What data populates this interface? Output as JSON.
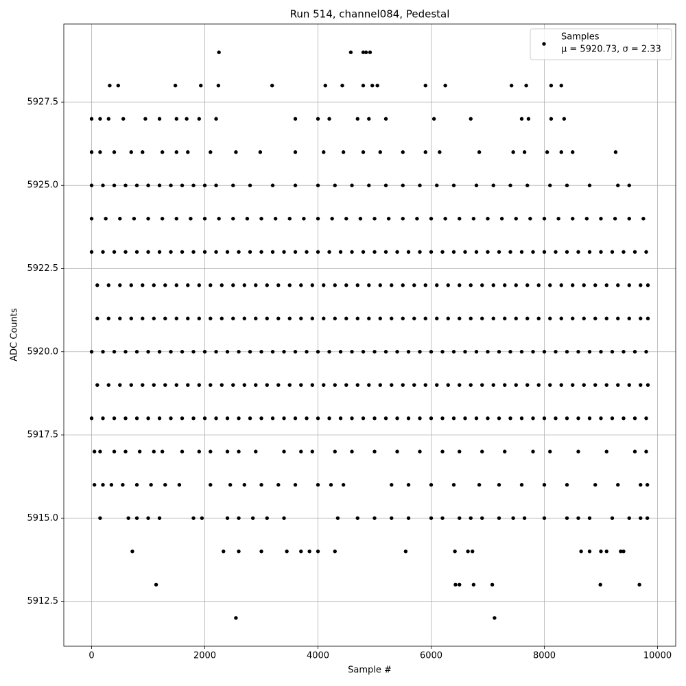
{
  "chart_data": {
    "type": "scatter",
    "title": "Run 514, channel084, Pedestal",
    "xlabel": "Sample #",
    "ylabel": "ADC Counts",
    "xlim": [
      -491.5,
      10321.5
    ],
    "ylim": [
      5911.15,
      5929.85
    ],
    "xticks": [
      0,
      2000,
      4000,
      6000,
      8000,
      10000
    ],
    "yticks": [
      {
        "value": 5912.5,
        "label": "5912.5"
      },
      {
        "value": 5915,
        "label": "5915.0"
      },
      {
        "value": 5917.5,
        "label": "5917.5"
      },
      {
        "value": 5920,
        "label": "5920.0"
      },
      {
        "value": 5922.5,
        "label": "5922.5"
      },
      {
        "value": 5925,
        "label": "5925.0"
      },
      {
        "value": 5927.5,
        "label": "5927.5"
      }
    ],
    "grid": true,
    "legend": "upper right",
    "legend_stats": "μ = 5920.73, σ = 2.33",
    "x": [
      2250,
      4580,
      4800,
      4850,
      4920,
      320,
      470,
      1480,
      1930,
      2240,
      3190,
      4130,
      4430,
      4800,
      4960,
      5050,
      5900,
      6250,
      7420,
      7680,
      8120,
      8300,
      0,
      150,
      300,
      560,
      950,
      1200,
      1500,
      1680,
      1900,
      2200,
      3600,
      4000,
      4200,
      4700,
      4900,
      5200,
      6050,
      6700,
      7600,
      7720,
      8120,
      8350,
      0,
      150,
      400,
      700,
      900,
      1250,
      1500,
      1700,
      2100,
      2550,
      2980,
      3600,
      4100,
      4450,
      4800,
      5100,
      5500,
      5900,
      6150,
      6850,
      7450,
      7650,
      8050,
      8300,
      8500,
      9260,
      0,
      200,
      400,
      600,
      800,
      1000,
      1200,
      1400,
      1600,
      1800,
      2000,
      2200,
      2500,
      2800,
      3200,
      3600,
      4000,
      4300,
      4600,
      4900,
      5200,
      5500,
      5800,
      6100,
      6400,
      6800,
      7100,
      7400,
      7700,
      8100,
      8400,
      8800,
      9300,
      9500,
      0,
      250,
      500,
      750,
      1000,
      1250,
      1500,
      1750,
      2000,
      2250,
      2500,
      2750,
      3000,
      3250,
      3500,
      3750,
      4000,
      4250,
      4500,
      4750,
      5000,
      5250,
      5500,
      5750,
      6000,
      6250,
      6500,
      6750,
      7000,
      7250,
      7500,
      7750,
      8000,
      8250,
      8500,
      8750,
      9000,
      9250,
      9500,
      9750,
      0,
      200,
      400,
      600,
      800,
      1000,
      1200,
      1400,
      1600,
      1800,
      2000,
      2200,
      2400,
      2600,
      2800,
      3000,
      3200,
      3400,
      3600,
      3800,
      4000,
      4200,
      4400,
      4600,
      4800,
      5000,
      5200,
      5400,
      5600,
      5800,
      6000,
      6200,
      6400,
      6600,
      6800,
      7000,
      7200,
      7400,
      7600,
      7800,
      8000,
      8200,
      8400,
      8600,
      8800,
      9000,
      9200,
      9400,
      9600,
      9800,
      100,
      300,
      500,
      700,
      900,
      1100,
      1300,
      1500,
      1700,
      1900,
      2100,
      2300,
      2500,
      2700,
      2900,
      3100,
      3300,
      3500,
      3700,
      3900,
      4100,
      4300,
      4500,
      4700,
      4900,
      5100,
      5300,
      5500,
      5700,
      5900,
      6100,
      6300,
      6500,
      6700,
      6900,
      7100,
      7300,
      7500,
      7700,
      7900,
      8100,
      8300,
      8500,
      8700,
      8900,
      9100,
      9300,
      9500,
      9700,
      9830,
      100,
      300,
      500,
      700,
      900,
      1100,
      1300,
      1500,
      1700,
      1900,
      2100,
      2300,
      2500,
      2700,
      2900,
      3100,
      3300,
      3500,
      3700,
      3900,
      4100,
      4300,
      4500,
      4700,
      4900,
      5100,
      5300,
      5500,
      5700,
      5900,
      6100,
      6300,
      6500,
      6700,
      6900,
      7100,
      7300,
      7500,
      7700,
      7900,
      8100,
      8300,
      8500,
      8700,
      8900,
      9100,
      9300,
      9500,
      9700,
      9830,
      0,
      200,
      400,
      600,
      800,
      1000,
      1200,
      1400,
      1600,
      1800,
      2000,
      2200,
      2400,
      2600,
      2800,
      3000,
      3200,
      3400,
      3600,
      3800,
      4000,
      4200,
      4400,
      4600,
      4800,
      5000,
      5200,
      5400,
      5600,
      5800,
      6000,
      6200,
      6400,
      6600,
      6800,
      7000,
      7200,
      7400,
      7600,
      7800,
      8000,
      8200,
      8400,
      8600,
      8800,
      9000,
      9200,
      9400,
      9600,
      9800,
      100,
      300,
      500,
      700,
      900,
      1100,
      1300,
      1500,
      1700,
      1900,
      2100,
      2300,
      2500,
      2700,
      2900,
      3100,
      3300,
      3500,
      3700,
      3900,
      4100,
      4300,
      4500,
      4700,
      4900,
      5100,
      5300,
      5500,
      5700,
      5900,
      6100,
      6300,
      6500,
      6700,
      6900,
      7100,
      7300,
      7500,
      7700,
      7900,
      8100,
      8300,
      8500,
      8700,
      8900,
      9100,
      9300,
      9500,
      9700,
      9830,
      0,
      200,
      400,
      600,
      800,
      1000,
      1200,
      1400,
      1600,
      1800,
      2000,
      2200,
      2400,
      2600,
      2800,
      3000,
      3200,
      3400,
      3600,
      3800,
      4000,
      4200,
      4400,
      4600,
      4800,
      5000,
      5200,
      5400,
      5600,
      5800,
      6000,
      6200,
      6400,
      6600,
      6800,
      7000,
      7200,
      7400,
      7600,
      7800,
      8000,
      8200,
      8400,
      8600,
      8800,
      9000,
      9200,
      9400,
      9600,
      9800,
      50,
      150,
      400,
      600,
      850,
      1100,
      1250,
      1600,
      1900,
      2100,
      2400,
      2600,
      2900,
      3400,
      3700,
      3900,
      4300,
      4600,
      5000,
      5400,
      5800,
      6200,
      6500,
      6900,
      7300,
      7800,
      8100,
      8600,
      9100,
      9600,
      9800,
      50,
      200,
      350,
      550,
      800,
      1050,
      1300,
      1550,
      2100,
      2450,
      2700,
      3000,
      3300,
      3600,
      4000,
      4230,
      4450,
      5300,
      5600,
      6000,
      6400,
      6850,
      7200,
      7600,
      8000,
      8400,
      8900,
      9300,
      9700,
      9820,
      150,
      650,
      800,
      1000,
      1200,
      1800,
      1950,
      2400,
      2600,
      2850,
      3100,
      3400,
      4350,
      4700,
      5000,
      5300,
      5600,
      6000,
      6200,
      6500,
      6700,
      6900,
      7200,
      7450,
      7650,
      8000,
      8400,
      8600,
      8800,
      9200,
      9500,
      9700,
      9820,
      720,
      2330,
      2600,
      3000,
      3450,
      3700,
      3850,
      4000,
      4300,
      5550,
      6420,
      6650,
      6730,
      8650,
      8800,
      9000,
      9100,
      9350,
      9400,
      1140,
      6430,
      6500,
      6750,
      7080,
      8990,
      9680,
      2550,
      7120
    ],
    "series": [
      {
        "name": "Samples",
        "color": "#000000",
        "values": [
          5929,
          5929,
          5929,
          5929,
          5929,
          5928,
          5928,
          5928,
          5928,
          5928,
          5928,
          5928,
          5928,
          5928,
          5928,
          5928,
          5928,
          5928,
          5928,
          5928,
          5928,
          5928,
          5927,
          5927,
          5927,
          5927,
          5927,
          5927,
          5927,
          5927,
          5927,
          5927,
          5927,
          5927,
          5927,
          5927,
          5927,
          5927,
          5927,
          5927,
          5927,
          5927,
          5927,
          5927,
          5926,
          5926,
          5926,
          5926,
          5926,
          5926,
          5926,
          5926,
          5926,
          5926,
          5926,
          5926,
          5926,
          5926,
          5926,
          5926,
          5926,
          5926,
          5926,
          5926,
          5926,
          5926,
          5926,
          5926,
          5926,
          5926,
          5925,
          5925,
          5925,
          5925,
          5925,
          5925,
          5925,
          5925,
          5925,
          5925,
          5925,
          5925,
          5925,
          5925,
          5925,
          5925,
          5925,
          5925,
          5925,
          5925,
          5925,
          5925,
          5925,
          5925,
          5925,
          5925,
          5925,
          5925,
          5925,
          5925,
          5925,
          5925,
          5925,
          5925,
          5924,
          5924,
          5924,
          5924,
          5924,
          5924,
          5924,
          5924,
          5924,
          5924,
          5924,
          5924,
          5924,
          5924,
          5924,
          5924,
          5924,
          5924,
          5924,
          5924,
          5924,
          5924,
          5924,
          5924,
          5924,
          5924,
          5924,
          5924,
          5924,
          5924,
          5924,
          5924,
          5924,
          5924,
          5924,
          5924,
          5924,
          5924,
          5924,
          5924,
          5923,
          5923,
          5923,
          5923,
          5923,
          5923,
          5923,
          5923,
          5923,
          5923,
          5923,
          5923,
          5923,
          5923,
          5923,
          5923,
          5923,
          5923,
          5923,
          5923,
          5923,
          5923,
          5923,
          5923,
          5923,
          5923,
          5923,
          5923,
          5923,
          5923,
          5923,
          5923,
          5923,
          5923,
          5923,
          5923,
          5923,
          5923,
          5923,
          5923,
          5923,
          5923,
          5923,
          5923,
          5923,
          5923,
          5923,
          5923,
          5923,
          5923,
          5922,
          5922,
          5922,
          5922,
          5922,
          5922,
          5922,
          5922,
          5922,
          5922,
          5922,
          5922,
          5922,
          5922,
          5922,
          5922,
          5922,
          5922,
          5922,
          5922,
          5922,
          5922,
          5922,
          5922,
          5922,
          5922,
          5922,
          5922,
          5922,
          5922,
          5922,
          5922,
          5922,
          5922,
          5922,
          5922,
          5922,
          5922,
          5922,
          5922,
          5922,
          5922,
          5922,
          5922,
          5922,
          5922,
          5922,
          5922,
          5922,
          5922,
          5921,
          5921,
          5921,
          5921,
          5921,
          5921,
          5921,
          5921,
          5921,
          5921,
          5921,
          5921,
          5921,
          5921,
          5921,
          5921,
          5921,
          5921,
          5921,
          5921,
          5921,
          5921,
          5921,
          5921,
          5921,
          5921,
          5921,
          5921,
          5921,
          5921,
          5921,
          5921,
          5921,
          5921,
          5921,
          5921,
          5921,
          5921,
          5921,
          5921,
          5921,
          5921,
          5921,
          5921,
          5921,
          5921,
          5921,
          5921,
          5921,
          5921,
          5920,
          5920,
          5920,
          5920,
          5920,
          5920,
          5920,
          5920,
          5920,
          5920,
          5920,
          5920,
          5920,
          5920,
          5920,
          5920,
          5920,
          5920,
          5920,
          5920,
          5920,
          5920,
          5920,
          5920,
          5920,
          5920,
          5920,
          5920,
          5920,
          5920,
          5920,
          5920,
          5920,
          5920,
          5920,
          5920,
          5920,
          5920,
          5920,
          5920,
          5920,
          5920,
          5920,
          5920,
          5920,
          5920,
          5920,
          5920,
          5920,
          5920,
          5919,
          5919,
          5919,
          5919,
          5919,
          5919,
          5919,
          5919,
          5919,
          5919,
          5919,
          5919,
          5919,
          5919,
          5919,
          5919,
          5919,
          5919,
          5919,
          5919,
          5919,
          5919,
          5919,
          5919,
          5919,
          5919,
          5919,
          5919,
          5919,
          5919,
          5919,
          5919,
          5919,
          5919,
          5919,
          5919,
          5919,
          5919,
          5919,
          5919,
          5919,
          5919,
          5919,
          5919,
          5919,
          5919,
          5919,
          5919,
          5919,
          5919,
          5918,
          5918,
          5918,
          5918,
          5918,
          5918,
          5918,
          5918,
          5918,
          5918,
          5918,
          5918,
          5918,
          5918,
          5918,
          5918,
          5918,
          5918,
          5918,
          5918,
          5918,
          5918,
          5918,
          5918,
          5918,
          5918,
          5918,
          5918,
          5918,
          5918,
          5918,
          5918,
          5918,
          5918,
          5918,
          5918,
          5918,
          5918,
          5918,
          5918,
          5918,
          5918,
          5918,
          5918,
          5918,
          5918,
          5918,
          5918,
          5918,
          5918,
          5917,
          5917,
          5917,
          5917,
          5917,
          5917,
          5917,
          5917,
          5917,
          5917,
          5917,
          5917,
          5917,
          5917,
          5917,
          5917,
          5917,
          5917,
          5917,
          5917,
          5917,
          5917,
          5917,
          5917,
          5917,
          5917,
          5917,
          5917,
          5917,
          5917,
          5917,
          5916,
          5916,
          5916,
          5916,
          5916,
          5916,
          5916,
          5916,
          5916,
          5916,
          5916,
          5916,
          5916,
          5916,
          5916,
          5916,
          5916,
          5916,
          5916,
          5916,
          5916,
          5916,
          5916,
          5916,
          5916,
          5916,
          5916,
          5916,
          5916,
          5916,
          5915,
          5915,
          5915,
          5915,
          5915,
          5915,
          5915,
          5915,
          5915,
          5915,
          5915,
          5915,
          5915,
          5915,
          5915,
          5915,
          5915,
          5915,
          5915,
          5915,
          5915,
          5915,
          5915,
          5915,
          5915,
          5915,
          5915,
          5915,
          5915,
          5915,
          5915,
          5915,
          5915,
          5914,
          5914,
          5914,
          5914,
          5914,
          5914,
          5914,
          5914,
          5914,
          5914,
          5914,
          5914,
          5914,
          5914,
          5914,
          5914,
          5914,
          5914,
          5914,
          5913,
          5913,
          5913,
          5913,
          5913,
          5913,
          5913,
          5912,
          5912
        ]
      }
    ]
  }
}
